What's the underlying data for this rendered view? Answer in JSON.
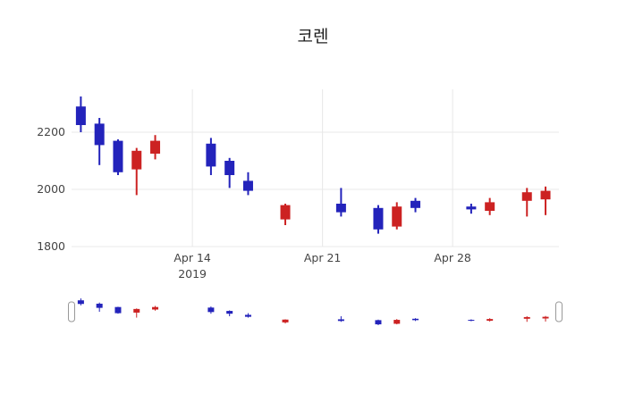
{
  "title": "코렌",
  "colors": {
    "up": "#cc2222",
    "down": "#2323bb",
    "grid": "#e8e8e8",
    "axis_text": "#444444",
    "background": "#ffffff",
    "handle_fill": "#ffffff",
    "handle_border": "#999999"
  },
  "y_axis": {
    "ticks": [
      {
        "label": "2200",
        "value": 2200
      },
      {
        "label": "2000",
        "value": 2000
      },
      {
        "label": "1800",
        "value": 1800
      }
    ]
  },
  "x_axis": {
    "ticks": [
      {
        "label": "Apr 14",
        "sublabel": "2019",
        "date": "2019-04-14"
      },
      {
        "label": "Apr 21",
        "sublabel": "",
        "date": "2019-04-21"
      },
      {
        "label": "Apr 28",
        "sublabel": "",
        "date": "2019-04-28"
      }
    ]
  },
  "chart_data": {
    "type": "candlestick",
    "title": "코렌",
    "xlabel": "",
    "ylabel": "",
    "legend": "none",
    "grid": true,
    "rangeslider": true,
    "y_range": [
      1800,
      2350
    ],
    "x_range_days": [
      -0.5,
      25.72
    ],
    "dates": [
      "2019-04-08",
      "2019-04-09",
      "2019-04-10",
      "2019-04-11",
      "2019-04-12",
      "2019-04-15",
      "2019-04-16",
      "2019-04-17",
      "2019-04-19",
      "2019-04-22",
      "2019-04-24",
      "2019-04-25",
      "2019-04-26",
      "2019-04-29",
      "2019-04-30",
      "2019-05-02",
      "2019-05-03"
    ],
    "open": [
      2290,
      2230,
      2170,
      2070,
      2125,
      2160,
      2100,
      2030,
      1895,
      1950,
      1935,
      1870,
      1960,
      1940,
      1925,
      1960,
      1965
    ],
    "high": [
      2325,
      2250,
      2175,
      2145,
      2190,
      2180,
      2110,
      2060,
      1950,
      2005,
      1945,
      1955,
      1970,
      1950,
      1970,
      2005,
      2010
    ],
    "low": [
      2200,
      2085,
      2050,
      1980,
      2105,
      2050,
      2005,
      1980,
      1875,
      1905,
      1845,
      1860,
      1920,
      1915,
      1910,
      1905,
      1910
    ],
    "close": [
      2225,
      2155,
      2060,
      2135,
      2170,
      2080,
      2050,
      1995,
      1945,
      1920,
      1860,
      1940,
      1935,
      1930,
      1955,
      1990,
      1995
    ]
  }
}
